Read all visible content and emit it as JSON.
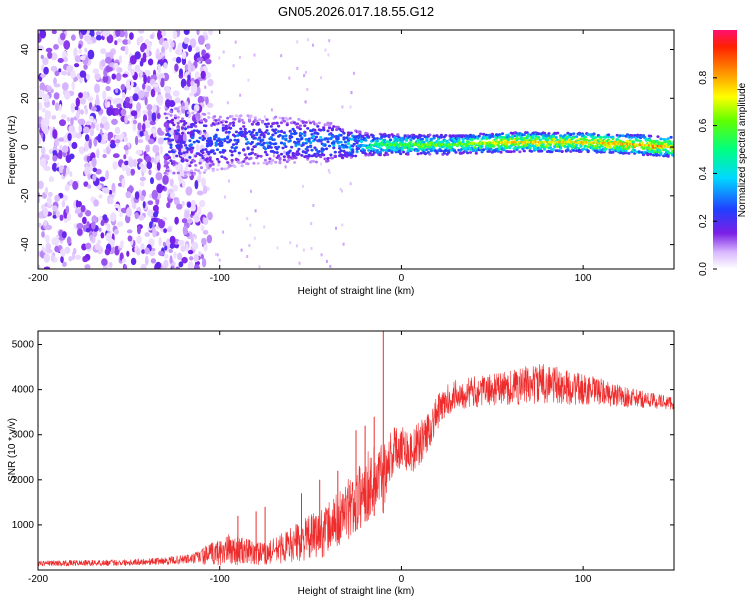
{
  "title": "GN05.2026.017.18.55.G12",
  "chart_data": [
    {
      "type": "heatmap",
      "xlabel": "Height of straight line (km)",
      "ylabel": "Frequency (Hz)",
      "xlim": [
        -200,
        150
      ],
      "ylim": [
        -50,
        48
      ],
      "xticks": [
        -200,
        -100,
        0,
        100
      ],
      "yticks": [
        -40,
        -20,
        0,
        20,
        40
      ],
      "colorbar": {
        "label": "Normalized spectral amplitude",
        "range": [
          0,
          1
        ],
        "ticks": [
          "0.0",
          "0.2",
          "0.4",
          "0.6",
          "0.8"
        ],
        "tick_values": [
          0.0,
          0.2,
          0.4,
          0.6,
          0.8
        ]
      },
      "ridge": [
        {
          "x": -130,
          "y": 2,
          "amp": 0.25,
          "spread": 10
        },
        {
          "x": -100,
          "y": 2,
          "amp": 0.3,
          "spread": 7
        },
        {
          "x": -70,
          "y": 3,
          "amp": 0.32,
          "spread": 6
        },
        {
          "x": -40,
          "y": 2,
          "amp": 0.38,
          "spread": 5
        },
        {
          "x": -20,
          "y": 1,
          "amp": 0.5,
          "spread": 3
        },
        {
          "x": 0,
          "y": 1,
          "amp": 0.6,
          "spread": 2.5
        },
        {
          "x": 30,
          "y": 1,
          "amp": 0.6,
          "spread": 2.5
        },
        {
          "x": 60,
          "y": 2,
          "amp": 0.75,
          "spread": 2.5
        },
        {
          "x": 100,
          "y": 2,
          "amp": 0.75,
          "spread": 2.5
        },
        {
          "x": 130,
          "y": 1,
          "amp": 0.8,
          "spread": 2.5
        },
        {
          "x": 150,
          "y": 0,
          "amp": 0.85,
          "spread": 2.5
        }
      ],
      "noise_region_xmax": -115
    },
    {
      "type": "line",
      "xlabel": "Height of straight line (km)",
      "ylabel": "SNR (10 * v/v)",
      "xlim": [
        -200,
        150
      ],
      "ylim": [
        0,
        5300
      ],
      "xticks": [
        -200,
        -100,
        0,
        100
      ],
      "yticks": [
        1000,
        2000,
        3000,
        4000,
        5000
      ],
      "color": "#ee2c2c",
      "series": [
        {
          "name": "SNR",
          "x": [
            -200,
            -160,
            -130,
            -115,
            -105,
            -95,
            -85,
            -75,
            -65,
            -55,
            -45,
            -38,
            -30,
            -25,
            -20,
            -15,
            -10,
            -8,
            -5,
            0,
            5,
            10,
            15,
            20,
            25,
            30,
            40,
            50,
            60,
            70,
            80,
            90,
            100,
            110,
            120,
            130,
            140,
            150
          ],
          "y": [
            150,
            160,
            200,
            250,
            350,
            450,
            400,
            350,
            500,
            650,
            800,
            1000,
            1300,
            1500,
            1800,
            2000,
            2100,
            2400,
            2600,
            2800,
            2600,
            2800,
            3100,
            3500,
            3750,
            3900,
            3950,
            4000,
            4050,
            4100,
            4150,
            4050,
            4000,
            3950,
            3850,
            3800,
            3750,
            3700
          ],
          "noise": [
            60,
            70,
            80,
            120,
            250,
            350,
            300,
            250,
            350,
            450,
            550,
            600,
            700,
            700,
            800,
            800,
            800,
            700,
            600,
            500,
            500,
            500,
            450,
            400,
            350,
            350,
            350,
            350,
            400,
            450,
            450,
            400,
            350,
            300,
            250,
            200,
            180,
            150
          ]
        },
        {
          "name": "spikes",
          "x": [
            -10,
            -15,
            -20,
            -25,
            -35,
            -45,
            -55,
            -75,
            -80,
            -90
          ],
          "y": [
            5300,
            3400,
            3200,
            3100,
            2200,
            2000,
            1700,
            1400,
            1300,
            1200
          ]
        }
      ]
    }
  ]
}
